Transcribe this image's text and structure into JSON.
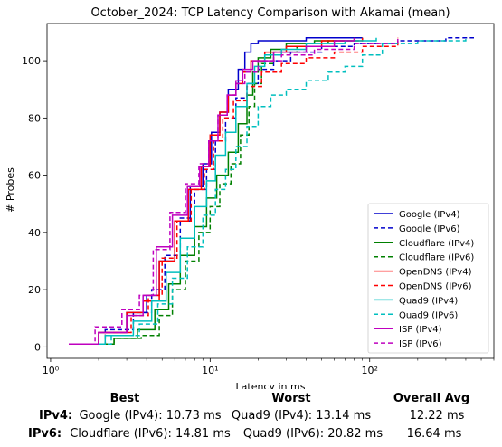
{
  "chart_data": {
    "type": "line",
    "title": "October_2024: TCP Latency Comparison with Akamai (mean)",
    "xlabel": "Latency in ms",
    "ylabel": "# Probes",
    "xscale": "log",
    "xlim": [
      0.95,
      600
    ],
    "ylim": [
      -4,
      113
    ],
    "x_ticks": [
      1,
      10,
      100
    ],
    "x_tick_labels": [
      "10⁰",
      "10¹",
      "10²"
    ],
    "y_ticks": [
      0,
      20,
      40,
      60,
      80,
      100
    ],
    "y_tick_labels": [
      "0",
      "20",
      "40",
      "60",
      "80",
      "100"
    ],
    "grid": false,
    "legend_position": "bottom-right",
    "series": [
      {
        "name": "Google (IPv4)",
        "color": "#0000cc",
        "dash": "solid",
        "x": [
          1.3,
          2.0,
          3.0,
          4.0,
          4.8,
          6.0,
          7.5,
          9.0,
          10.2,
          11.5,
          13.0,
          15.0,
          16.5,
          18.0,
          20.0,
          24.0,
          40.0,
          70.0,
          90.0
        ],
        "y": [
          1,
          5,
          12,
          18,
          30,
          44,
          56,
          64,
          75,
          82,
          90,
          97,
          103,
          106,
          107,
          107,
          108,
          108,
          108
        ]
      },
      {
        "name": "Google (IPv6)",
        "color": "#0000cc",
        "dash": "dash",
        "x": [
          1.4,
          2.2,
          3.3,
          4.3,
          5.2,
          6.5,
          8.0,
          9.5,
          10.8,
          12.5,
          14.5,
          17.0,
          20.0,
          25.0,
          32.0,
          50.0,
          80.0,
          150.0,
          300.0,
          450.0
        ],
        "y": [
          1,
          6,
          12,
          20,
          32,
          45,
          55,
          62,
          72,
          80,
          87,
          92,
          97,
          100,
          103,
          105,
          106,
          107,
          108,
          108
        ]
      },
      {
        "name": "Cloudflare (IPv4)",
        "color": "#008000",
        "dash": "solid",
        "x": [
          1.5,
          2.5,
          3.5,
          4.5,
          5.5,
          6.5,
          8.0,
          9.5,
          11.0,
          13.0,
          15.0,
          17.0,
          18.5,
          20.0,
          24.0,
          30.0,
          45.0,
          80.0
        ],
        "y": [
          1,
          3,
          6,
          13,
          22,
          32,
          42,
          52,
          60,
          68,
          78,
          88,
          96,
          101,
          104,
          106,
          107,
          108
        ]
      },
      {
        "name": "Cloudflare (IPv6)",
        "color": "#008000",
        "dash": "dash",
        "x": [
          1.5,
          2.5,
          3.7,
          4.8,
          5.8,
          7.0,
          8.5,
          10.0,
          11.5,
          13.5,
          15.5,
          17.5,
          19.0,
          21.0,
          25.0,
          35.0,
          55.0,
          90.0
        ],
        "y": [
          1,
          3,
          4,
          11,
          20,
          30,
          40,
          49,
          57,
          64,
          74,
          84,
          92,
          99,
          103,
          105,
          107,
          108
        ]
      },
      {
        "name": "OpenDNS (IPv4)",
        "color": "#ff0000",
        "dash": "solid",
        "x": [
          1.3,
          2.0,
          3.0,
          3.8,
          4.8,
          6.0,
          7.3,
          8.8,
          10.0,
          11.5,
          13.0,
          14.5,
          16.0,
          18.0,
          22.0,
          30.0,
          50.0,
          90.0
        ],
        "y": [
          1,
          5,
          12,
          16,
          30,
          44,
          55,
          63,
          74,
          82,
          88,
          92,
          96,
          100,
          103,
          105,
          107,
          108
        ]
      },
      {
        "name": "OpenDNS (IPv6)",
        "color": "#ff0000",
        "dash": "dash",
        "x": [
          1.4,
          2.2,
          3.2,
          4.1,
          5.0,
          6.2,
          7.6,
          9.2,
          10.5,
          12.0,
          14.0,
          17.0,
          21.0,
          28.0,
          40.0,
          60.0,
          90.0,
          150.0
        ],
        "y": [
          1,
          5,
          11,
          18,
          31,
          44,
          55,
          62,
          72,
          80,
          86,
          91,
          96,
          99,
          101,
          103,
          105,
          108
        ]
      },
      {
        "name": "Quad9 (IPv4)",
        "color": "#00bfbf",
        "dash": "solid",
        "x": [
          1.4,
          2.2,
          3.3,
          4.3,
          5.3,
          6.5,
          8.0,
          9.5,
          10.8,
          12.5,
          14.5,
          17.0,
          19.0,
          22.0,
          28.0,
          40.0,
          70.0,
          110.0
        ],
        "y": [
          1,
          4,
          9,
          16,
          26,
          38,
          49,
          58,
          67,
          75,
          84,
          92,
          98,
          102,
          104,
          106,
          107,
          108
        ]
      },
      {
        "name": "Quad9 (IPv6)",
        "color": "#00bfbf",
        "dash": "dash",
        "x": [
          1.5,
          2.4,
          3.6,
          4.7,
          5.8,
          7.2,
          9.0,
          10.8,
          12.5,
          14.5,
          17.0,
          20.0,
          24.0,
          30.0,
          40.0,
          55.0,
          70.0,
          90.0,
          120.0,
          200.0,
          400.0
        ],
        "y": [
          1,
          4,
          8,
          15,
          24,
          35,
          46,
          55,
          62,
          70,
          77,
          84,
          88,
          90,
          93,
          96,
          98,
          102,
          106,
          107,
          108
        ]
      },
      {
        "name": "ISP (IPv4)",
        "color": "#bf00bf",
        "dash": "solid",
        "x": [
          1.3,
          2.0,
          3.0,
          3.8,
          4.6,
          5.8,
          7.2,
          8.6,
          9.8,
          11.2,
          12.8,
          14.5,
          16.0,
          18.5,
          25.0,
          40.0,
          60.0,
          80.0
        ],
        "y": [
          1,
          5,
          11,
          18,
          35,
          46,
          56,
          63,
          72,
          81,
          88,
          93,
          97,
          100,
          103,
          105,
          107,
          108
        ]
      },
      {
        "name": "ISP (IPv6)",
        "color": "#bf00bf",
        "dash": "dash",
        "x": [
          1.3,
          1.9,
          2.8,
          3.6,
          4.4,
          5.6,
          7.0,
          8.5,
          9.8,
          11.2,
          12.8,
          14.5,
          16.5,
          20.0,
          28.0,
          45.0,
          80.0,
          150.0
        ],
        "y": [
          1,
          7,
          13,
          18,
          34,
          47,
          57,
          64,
          72,
          81,
          88,
          92,
          96,
          100,
          102,
          104,
          106,
          108
        ]
      }
    ]
  },
  "summary": {
    "headers": {
      "best": "Best",
      "worst": "Worst",
      "avg": "Overall Avg"
    },
    "rows": [
      {
        "label": "IPv4:",
        "best": "Google (IPv4): 10.73 ms",
        "worst": "Quad9 (IPv4): 13.14 ms",
        "avg": "12.22 ms"
      },
      {
        "label": "IPv6:",
        "best": "Cloudflare (IPv6): 14.81 ms",
        "worst": "Quad9 (IPv6): 20.82 ms",
        "avg": "16.64 ms"
      }
    ]
  }
}
